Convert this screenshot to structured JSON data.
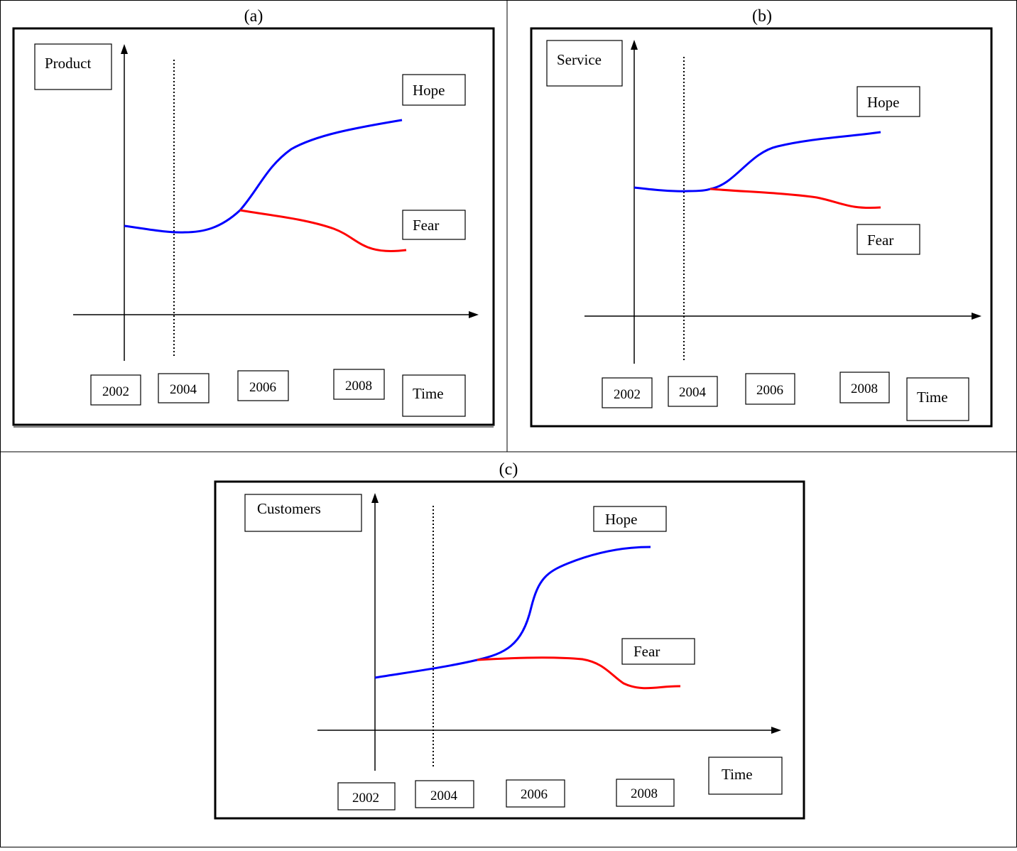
{
  "panels": [
    {
      "caption": "(a)",
      "ylabel": "Product",
      "xlabel": "Time",
      "years": [
        "2002",
        "2004",
        "2006",
        "2008"
      ],
      "hope_label": "Hope",
      "fear_label": "Fear"
    },
    {
      "caption": "(b)",
      "ylabel": "Service",
      "xlabel": "Time",
      "years": [
        "2002",
        "2004",
        "2006",
        "2008"
      ],
      "hope_label": "Hope",
      "fear_label": "Fear"
    },
    {
      "caption": "(c)",
      "ylabel": "Customers",
      "xlabel": "Time",
      "years": [
        "2002",
        "2004",
        "2006",
        "2008"
      ],
      "hope_label": "Hope",
      "fear_label": "Fear"
    }
  ],
  "colors": {
    "hope": "#0000ff",
    "fear": "#ff0000",
    "axis": "#000000",
    "frame": "#000000"
  }
}
